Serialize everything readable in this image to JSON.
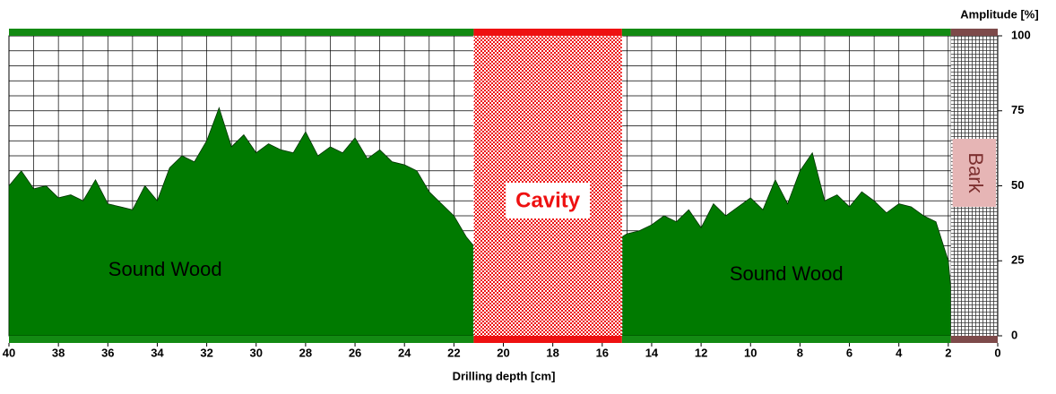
{
  "chart_data": {
    "type": "area",
    "xlabel": "Drilling depth [cm]",
    "ylabel": "Amplitude [%]",
    "xlim": [
      40,
      0
    ],
    "ylim": [
      0,
      100
    ],
    "xticks": [
      40,
      38,
      36,
      34,
      32,
      30,
      28,
      26,
      24,
      22,
      20,
      18,
      16,
      14,
      12,
      10,
      8,
      6,
      4,
      2,
      0
    ],
    "yticks": [
      0,
      25,
      50,
      75,
      100
    ],
    "xgrid": [
      40,
      39,
      38,
      37,
      36,
      35,
      34,
      33,
      32,
      31,
      30,
      29,
      28,
      27,
      26,
      25,
      24,
      23,
      22,
      21,
      20,
      19,
      18,
      17,
      16,
      15,
      14,
      13,
      12,
      11,
      10,
      9,
      8,
      7,
      6,
      5,
      4,
      3,
      2,
      1,
      0
    ],
    "ygrid": [
      0,
      5,
      10,
      15,
      20,
      25,
      30,
      35,
      40,
      45,
      50,
      55,
      60,
      65,
      70,
      75,
      80,
      85,
      90,
      95,
      100
    ],
    "color": "#007a00",
    "x": [
      40,
      39.5,
      39,
      38.5,
      38,
      37.5,
      37,
      36.5,
      36,
      35.5,
      35,
      34.5,
      34,
      33.5,
      33,
      32.5,
      32,
      31.5,
      31,
      30.5,
      30,
      29.5,
      29,
      28.5,
      28,
      27.5,
      27,
      26.5,
      26,
      25.5,
      25,
      24.5,
      24,
      23.5,
      23,
      22.5,
      22,
      21.5,
      21.2,
      18,
      15.2,
      15,
      14.5,
      14,
      13.5,
      13,
      12.5,
      12,
      11.5,
      11,
      10.5,
      10,
      9.5,
      9,
      8.5,
      8,
      7.5,
      7,
      6.5,
      6,
      5.5,
      5,
      4.5,
      4,
      3.5,
      3,
      2.5,
      2,
      1.9
    ],
    "values": [
      50,
      55,
      49,
      50,
      46,
      47,
      45,
      52,
      44,
      43,
      42,
      50,
      45,
      56,
      60,
      58,
      65,
      76,
      63,
      67,
      61,
      64,
      62,
      61,
      68,
      60,
      63,
      61,
      66,
      59,
      62,
      58,
      57,
      55,
      48,
      44,
      40,
      33,
      30,
      null,
      33,
      34,
      35,
      37,
      40,
      38,
      42,
      36,
      44,
      40,
      43,
      46,
      42,
      52,
      44,
      55,
      61,
      45,
      47,
      43,
      48,
      45,
      41,
      44,
      43,
      40,
      38,
      25,
      16
    ],
    "regions": [
      {
        "name": "Sound Wood",
        "start": 40,
        "end": 21.2,
        "color": "#138a13"
      },
      {
        "name": "Cavity",
        "start": 21.2,
        "end": 15.2,
        "color": "#ee1111",
        "pattern": "checker"
      },
      {
        "name": "Sound Wood",
        "start": 15.2,
        "end": 1.9,
        "color": "#138a13"
      },
      {
        "name": "Bark",
        "start": 1.9,
        "end": 0,
        "color": "#7d4a4a",
        "pattern": "grid"
      }
    ]
  }
}
